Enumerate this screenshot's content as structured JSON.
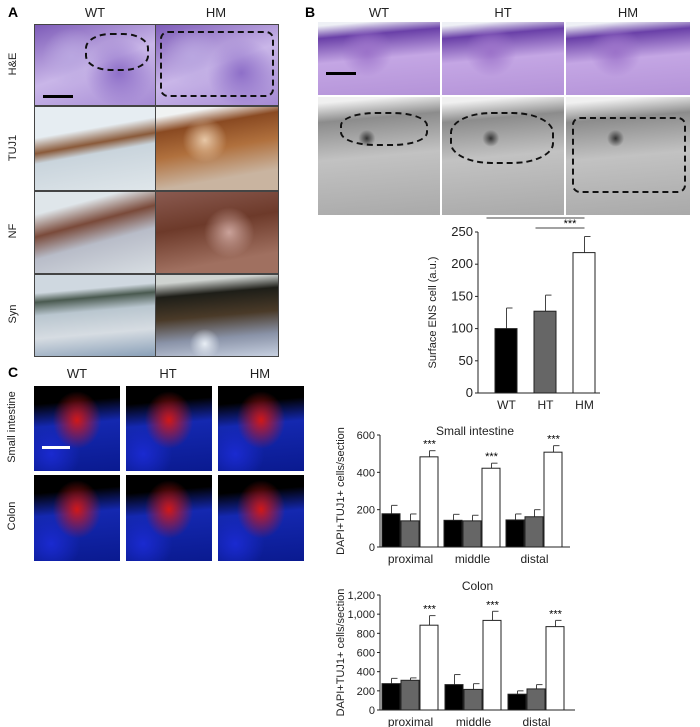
{
  "panels": {
    "A": {
      "label": "A",
      "columns": [
        "WT",
        "HM"
      ],
      "rows": [
        "H&E",
        "TUJ1",
        "NF",
        "Syn"
      ]
    },
    "B": {
      "label": "B",
      "columns": [
        "WT",
        "HT",
        "HM"
      ]
    },
    "C": {
      "label": "C",
      "columns": [
        "WT",
        "HT",
        "HM"
      ],
      "rows": [
        "Small intestine",
        "Colon"
      ]
    }
  },
  "colors": {
    "WT": "#000000",
    "HT": "#666666",
    "HM": "#ffffff"
  },
  "chart_data": [
    {
      "type": "bar",
      "title": "",
      "ylabel": "Surface ENS cell (a.u.)",
      "xlabel": "",
      "categories": [
        "WT",
        "HT",
        "HM"
      ],
      "values": [
        100,
        127,
        218
      ],
      "errors": [
        32,
        25,
        25
      ],
      "ylim": [
        0,
        250
      ],
      "yticks": [
        0,
        50,
        100,
        150,
        200,
        250
      ],
      "ytick_labels": [
        "0",
        "50",
        "100",
        "150",
        "200",
        "250"
      ],
      "significance": [
        {
          "from": "WT",
          "to": "HM",
          "label": "***"
        },
        {
          "from": "HT",
          "to": "HM",
          "label": "***"
        }
      ],
      "grid": false
    },
    {
      "type": "bar",
      "title": "Small intestine",
      "ylabel": "DAPI+TUJ1+ cells/section",
      "categories": [
        "proximal",
        "middle",
        "distal"
      ],
      "series": [
        {
          "values": [
            178,
            143,
            145
          ],
          "errors": [
            45,
            32,
            32
          ]
        },
        {
          "values": [
            140,
            140,
            162
          ],
          "errors": [
            37,
            30,
            38
          ]
        },
        {
          "values": [
            483,
            422,
            508
          ],
          "errors": [
            33,
            27,
            35
          ]
        }
      ],
      "annotations": [
        "***",
        "***",
        "***"
      ],
      "ylim": [
        0,
        600
      ],
      "yticks": [
        0,
        200,
        400,
        600
      ],
      "ytick_labels": [
        "0",
        "200",
        "400",
        "600"
      ],
      "grid": false
    },
    {
      "type": "bar",
      "title": "Colon",
      "ylabel": "DAPI+TUJ1+ cells/section",
      "categories": [
        "proximal",
        "middle",
        "distal"
      ],
      "series": [
        {
          "values": [
            275,
            265,
            165
          ],
          "errors": [
            55,
            105,
            35
          ]
        },
        {
          "values": [
            310,
            215,
            220
          ],
          "errors": [
            25,
            60,
            45
          ]
        },
        {
          "values": [
            885,
            935,
            870
          ],
          "errors": [
            100,
            95,
            65
          ]
        }
      ],
      "annotations": [
        "***",
        "***",
        "***"
      ],
      "ylim": [
        0,
        1200
      ],
      "yticks": [
        0,
        200,
        400,
        600,
        800,
        1000,
        1200
      ],
      "ytick_labels": [
        "0",
        "200",
        "400",
        "600",
        "800",
        "1,000",
        "1,200"
      ],
      "grid": false
    }
  ]
}
